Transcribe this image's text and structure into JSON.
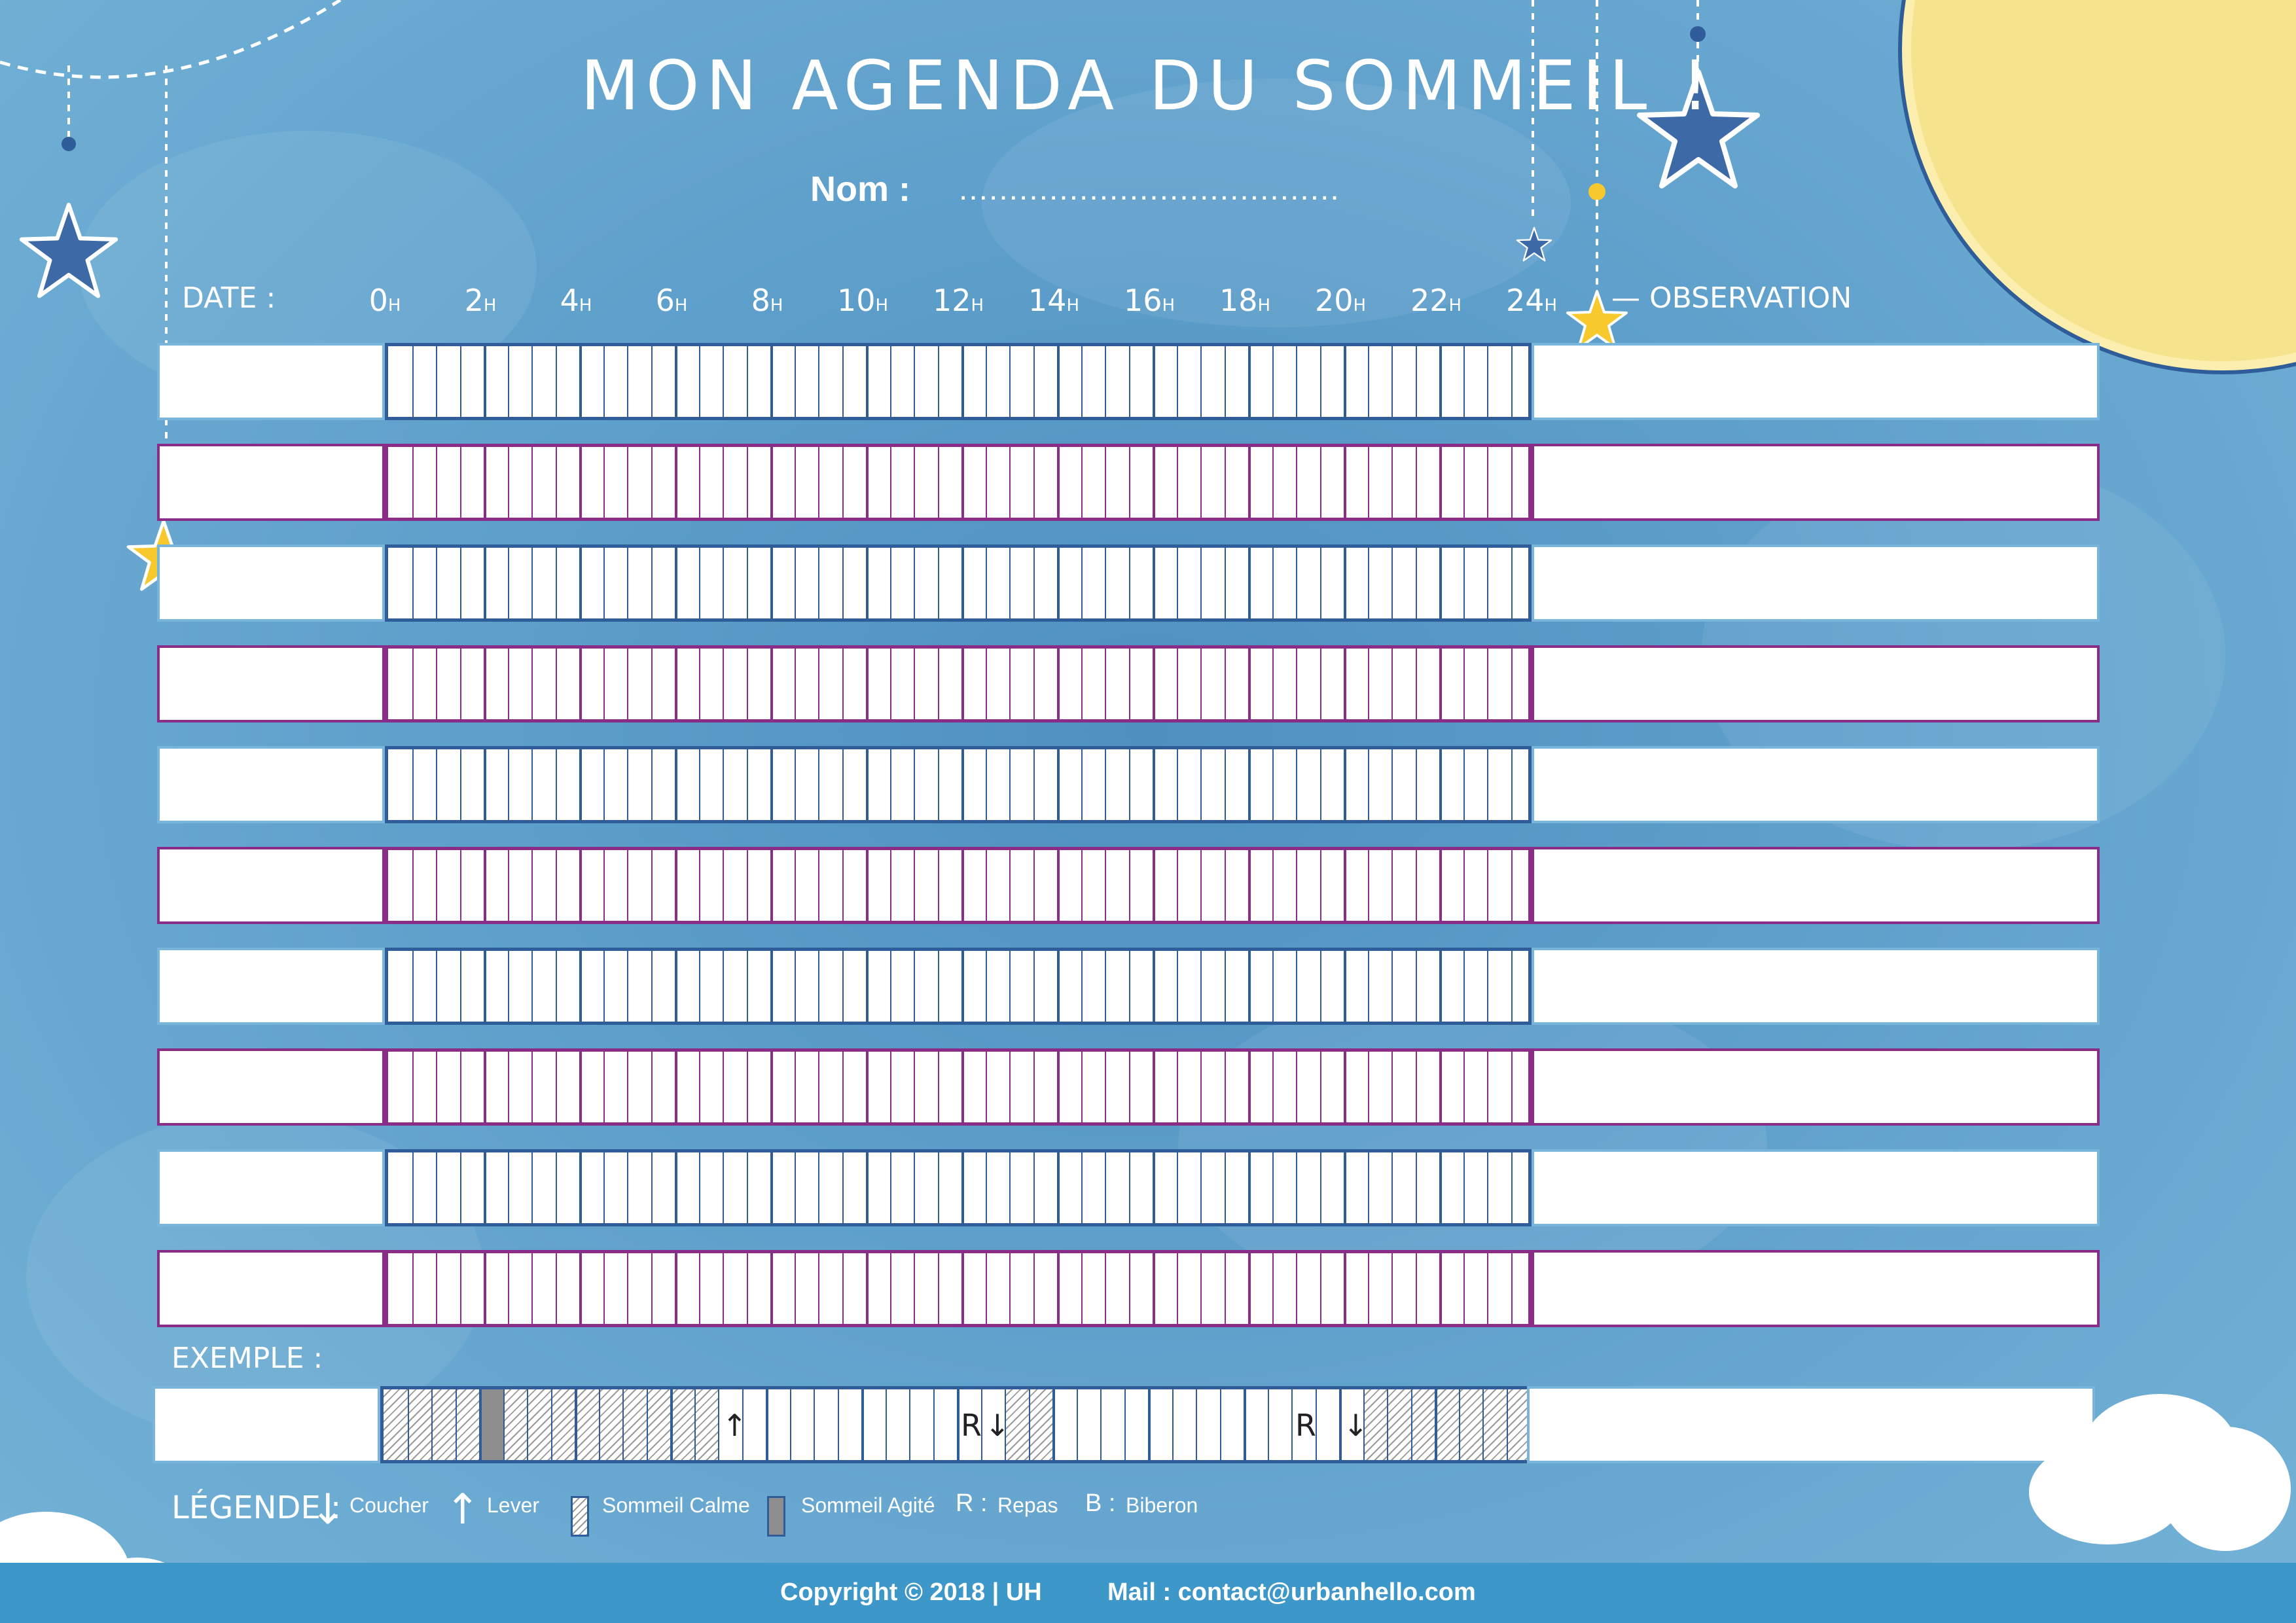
{
  "title": "MON AGENDA DU SOMMEIL !",
  "name_label": "Nom :",
  "name_dots": "......................................",
  "columns": {
    "date": "DATE :",
    "observation": "OBSERVATION"
  },
  "hours": [
    "0",
    "2",
    "4",
    "6",
    "8",
    "10",
    "12",
    "14",
    "16",
    "18",
    "20",
    "22",
    "24"
  ],
  "hour_suffix": "H",
  "example_label": "EXEMPLE :",
  "example_marks": {
    "repas1": "R",
    "repas2": "R"
  },
  "legend": {
    "title": "LÉGENDE :",
    "coucher": "Coucher",
    "lever": "Lever",
    "calme": "Sommeil Calme",
    "agite": "Sommeil Agité",
    "repas_sym": "R :",
    "repas": "Repas",
    "biberon_sym": "B :",
    "biberon": "Biberon"
  },
  "footer": {
    "copyright": "Copyright ©  2018 | UH",
    "mail": "Mail :  contact@urbanhello.com"
  },
  "colors": {
    "blue_row": "#2f5d99",
    "purple_row": "#8a2d89",
    "moon": "#f6e38e",
    "star_yellow": "#f7c92d",
    "star_blue": "#3d6aa6"
  }
}
